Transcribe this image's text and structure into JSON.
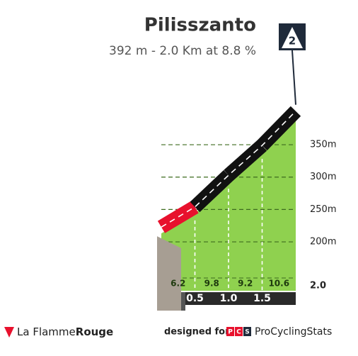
{
  "chart_data": {
    "type": "profile",
    "title": "Pilisszanto",
    "subtitle": "392 m - 2.0 Km at 8.8 %",
    "category": "2",
    "x": [
      0,
      0.5,
      1,
      1.5,
      2
    ],
    "values": [
      213,
      244,
      293,
      339,
      392
    ],
    "gradients": [
      6.2,
      9.8,
      9.2,
      10.6
    ],
    "road_colors": [
      "#e8112d",
      "#111111",
      "#111111",
      "#111111"
    ],
    "color": "#8fd14f",
    "xlim": [
      0,
      2
    ],
    "xticks": [
      0.5,
      {
        "value": 1,
        "label": "1.0"
      },
      1.5,
      {
        "value": 2,
        "label": "2.0"
      }
    ],
    "ylim": [
      150,
      400
    ],
    "yticks": [
      {
        "value": 200,
        "label": "200m"
      },
      {
        "value": 250,
        "label": "250m"
      },
      {
        "value": 300,
        "label": "300m"
      },
      {
        "value": 350,
        "label": "350m"
      }
    ],
    "grid": true
  },
  "footer": {
    "brand": "La Flamme",
    "brand_bold": "Rouge",
    "designed_for": "designed for",
    "pcs_logo": [
      "P",
      "C",
      "S"
    ],
    "site": "ProCyclingStats"
  }
}
